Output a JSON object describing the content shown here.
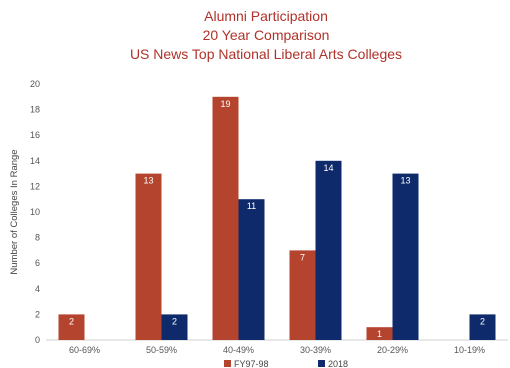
{
  "chart_data": {
    "type": "bar",
    "title": [
      "Alumni Participation",
      "20 Year Comparison",
      "US News Top National Liberal Arts Colleges"
    ],
    "xlabel": "",
    "ylabel": "Number of Colleges In Range",
    "ylim": [
      0,
      20
    ],
    "yticks": [
      0,
      2,
      4,
      6,
      8,
      10,
      12,
      14,
      16,
      18,
      20
    ],
    "grid": false,
    "legend_position": "bottom",
    "categories": [
      "60-69%",
      "50-59%",
      "40-49%",
      "30-39%",
      "20-29%",
      "10-19%"
    ],
    "series": [
      {
        "name": "FY97-98",
        "color": "#b5442e",
        "values": [
          2,
          13,
          19,
          7,
          1,
          null
        ]
      },
      {
        "name": "2018",
        "color": "#0e2a6b",
        "values": [
          null,
          2,
          11,
          14,
          13,
          2
        ]
      }
    ]
  }
}
